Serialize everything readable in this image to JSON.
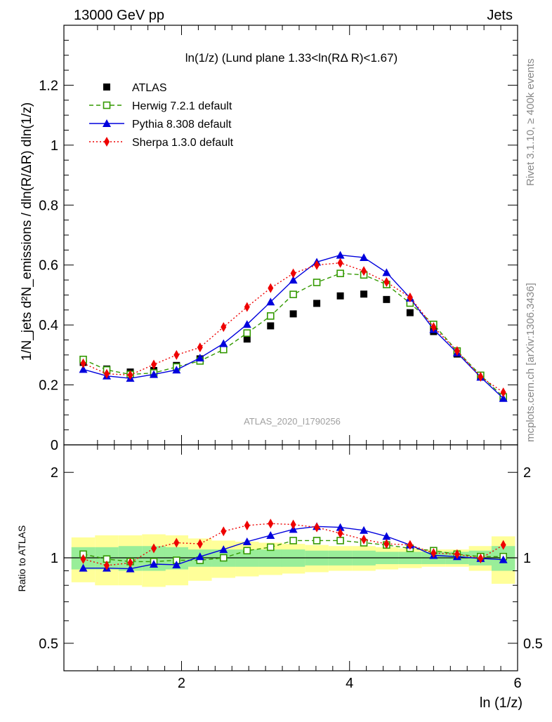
{
  "header": {
    "left": "13000 GeV pp",
    "right": "Jets"
  },
  "side_labels": {
    "rivet": "Rivet 3.1.10, ≥ 400k events",
    "mcplots": "mcplots.cern.ch [arXiv:1306.3436]"
  },
  "watermark": "ATLAS_2020_I1790256",
  "chart_data": [
    {
      "type": "line",
      "title": "ln(1/z) (Lund plane 1.33<ln(RΔ R)<1.67)",
      "ylabel": "1/N_jets d²N_emissions / dln(R/ΔR) dln(1/z)",
      "xlim": [
        0.6,
        6.0
      ],
      "ylim": [
        0,
        1.4
      ],
      "yticks": [
        0,
        0.2,
        0.4,
        0.6,
        0.8,
        1,
        1.2
      ],
      "ytick_labels": [
        "0",
        "0.2",
        "0.4",
        "0.6",
        "0.8",
        "1",
        "1.2"
      ],
      "legend_position": "top-left",
      "x": [
        0.83,
        1.11,
        1.39,
        1.67,
        1.94,
        2.22,
        2.5,
        2.78,
        3.06,
        3.33,
        3.61,
        3.89,
        4.17,
        4.44,
        4.72,
        5.0,
        5.28,
        5.56,
        5.83
      ],
      "series": [
        {
          "name": "ATLAS",
          "color": "#000000",
          "marker": "square-filled",
          "line": "none",
          "values": [
            0.275,
            0.253,
            0.243,
            0.248,
            0.265,
            0.287,
            0.318,
            0.353,
            0.397,
            0.437,
            0.472,
            0.497,
            0.503,
            0.485,
            0.441,
            0.378,
            0.303,
            0.228,
            0.157
          ]
        },
        {
          "name": "Herwig 7.2.1 default",
          "color": "#339900",
          "marker": "square-open",
          "line": "dashed",
          "values": [
            0.285,
            0.25,
            0.235,
            0.24,
            0.26,
            0.28,
            0.318,
            0.373,
            0.43,
            0.502,
            0.542,
            0.572,
            0.567,
            0.535,
            0.473,
            0.402,
            0.313,
            0.232,
            0.16
          ]
        },
        {
          "name": "Pythia 8.308 default",
          "color": "#0000dd",
          "marker": "triangle-filled",
          "line": "solid",
          "values": [
            0.252,
            0.23,
            0.222,
            0.235,
            0.25,
            0.29,
            0.338,
            0.402,
            0.477,
            0.55,
            0.61,
            0.633,
            0.625,
            0.575,
            0.49,
            0.385,
            0.307,
            0.226,
            0.155
          ]
        },
        {
          "name": "Sherpa 1.3.0 default",
          "color": "#ee0000",
          "marker": "diamond-filled",
          "line": "dotted",
          "values": [
            0.272,
            0.237,
            0.233,
            0.268,
            0.3,
            0.325,
            0.393,
            0.46,
            0.523,
            0.572,
            0.6,
            0.607,
            0.58,
            0.543,
            0.492,
            0.393,
            0.313,
            0.227,
            0.175
          ]
        }
      ]
    },
    {
      "type": "line",
      "title": "",
      "xlabel": "ln (1/z)",
      "ylabel": "Ratio to ATLAS",
      "xlim": [
        0.6,
        6.0
      ],
      "ylim": [
        0.4,
        2.5
      ],
      "yscale": "log",
      "xticks": [
        2,
        4,
        6
      ],
      "xtick_labels": [
        "2",
        "4",
        "6"
      ],
      "yticks": [
        0.5,
        1,
        2
      ],
      "ytick_labels": [
        "0.5",
        "1",
        "2"
      ],
      "x": [
        0.83,
        1.11,
        1.39,
        1.67,
        1.94,
        2.22,
        2.5,
        2.78,
        3.06,
        3.33,
        3.61,
        3.89,
        4.17,
        4.44,
        4.72,
        5.0,
        5.28,
        5.56,
        5.83
      ],
      "band_inner": {
        "color": "#99ee99",
        "low": [
          0.91,
          0.91,
          0.9,
          0.9,
          0.91,
          0.93,
          0.93,
          0.93,
          0.93,
          0.93,
          0.94,
          0.94,
          0.94,
          0.95,
          0.95,
          0.95,
          0.95,
          0.94,
          0.9
        ],
        "high": [
          1.09,
          1.09,
          1.1,
          1.1,
          1.09,
          1.07,
          1.07,
          1.07,
          1.07,
          1.07,
          1.06,
          1.06,
          1.06,
          1.05,
          1.05,
          1.05,
          1.05,
          1.06,
          1.1
        ]
      },
      "band_outer": {
        "color": "#ffff99",
        "low": [
          0.82,
          0.8,
          0.8,
          0.79,
          0.8,
          0.83,
          0.85,
          0.86,
          0.87,
          0.88,
          0.89,
          0.9,
          0.9,
          0.91,
          0.92,
          0.93,
          0.93,
          0.9,
          0.81
        ],
        "high": [
          1.18,
          1.2,
          1.2,
          1.21,
          1.2,
          1.17,
          1.15,
          1.14,
          1.13,
          1.12,
          1.11,
          1.1,
          1.1,
          1.09,
          1.08,
          1.07,
          1.07,
          1.1,
          1.19
        ]
      },
      "series": [
        {
          "name": "Herwig 7.2.1 default",
          "color": "#339900",
          "marker": "square-open",
          "line": "dashed",
          "values": [
            1.03,
            0.99,
            0.97,
            0.97,
            0.98,
            0.98,
            1.0,
            1.06,
            1.09,
            1.15,
            1.15,
            1.15,
            1.13,
            1.11,
            1.08,
            1.06,
            1.03,
            1.01,
            1.01
          ]
        },
        {
          "name": "Pythia 8.308 default",
          "color": "#0000dd",
          "marker": "triangle-filled",
          "line": "solid",
          "values": [
            0.92,
            0.92,
            0.915,
            0.95,
            0.945,
            1.01,
            1.07,
            1.14,
            1.2,
            1.26,
            1.29,
            1.28,
            1.25,
            1.19,
            1.11,
            1.02,
            1.01,
            0.995,
            0.985
          ]
        },
        {
          "name": "Sherpa 1.3.0 default",
          "color": "#ee0000",
          "marker": "diamond-filled",
          "line": "dotted",
          "values": [
            0.99,
            0.94,
            0.96,
            1.08,
            1.13,
            1.12,
            1.24,
            1.3,
            1.32,
            1.31,
            1.28,
            1.22,
            1.16,
            1.12,
            1.11,
            1.04,
            1.03,
            0.995,
            1.11
          ]
        }
      ]
    }
  ]
}
